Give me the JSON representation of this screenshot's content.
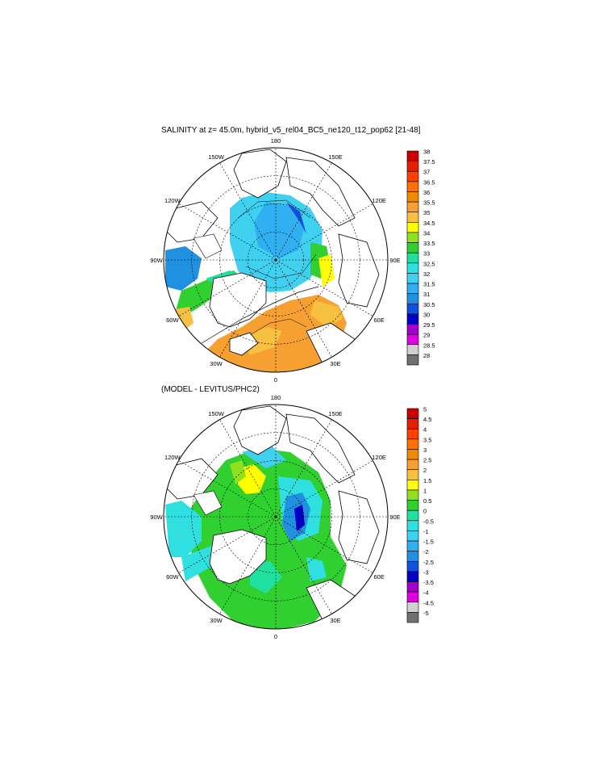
{
  "panels": [
    {
      "title": "SALINITY at z=  45.0m, hybrid_v5_rel04_BC5_ne120_t12_pop62 [21-48]",
      "colorbar": {
        "labels": [
          "38",
          "37.5",
          "37",
          "36.5",
          "36",
          "35.5",
          "35",
          "34.5",
          "34",
          "33.5",
          "33",
          "32.5",
          "32",
          "31.5",
          "31",
          "30.5",
          "30",
          "29.5",
          "29",
          "28.5",
          "28"
        ],
        "colors": [
          "#cc0000",
          "#e61e00",
          "#ff4000",
          "#ff7000",
          "#f08a00",
          "#f5a030",
          "#f8c040",
          "#ffff00",
          "#90e020",
          "#30d030",
          "#20e0a0",
          "#30e0e0",
          "#40d0f0",
          "#30b0f0",
          "#2090e0",
          "#1050e0",
          "#0000c8",
          "#a000c8",
          "#e000e0",
          "#d0d0d0",
          "#707070"
        ]
      }
    },
    {
      "title": "(MODEL - LEVITUS/PHC2)",
      "colorbar": {
        "labels": [
          "5",
          "4.5",
          "4",
          "3.5",
          "3",
          "2.5",
          "2",
          "1.5",
          "1",
          "0.5",
          "0",
          "-0.5",
          "-1",
          "-1.5",
          "-2",
          "-2.5",
          "-3",
          "-3.5",
          "-4",
          "-4.5",
          "-5"
        ],
        "colors": [
          "#cc0000",
          "#e61e00",
          "#ff4000",
          "#ff7000",
          "#f08a00",
          "#f5a030",
          "#f8c040",
          "#ffff00",
          "#90e020",
          "#30d030",
          "#20e0a0",
          "#30e0e0",
          "#40d0f0",
          "#30b0f0",
          "#2090e0",
          "#1050e0",
          "#0000c8",
          "#a000c8",
          "#e000e0",
          "#d0d0d0",
          "#707070"
        ]
      }
    }
  ],
  "meridian_labels": [
    "180",
    "150E",
    "120E",
    "90E",
    "60E",
    "30E",
    "0",
    "30W",
    "60W",
    "90W",
    "120W",
    "150W"
  ]
}
